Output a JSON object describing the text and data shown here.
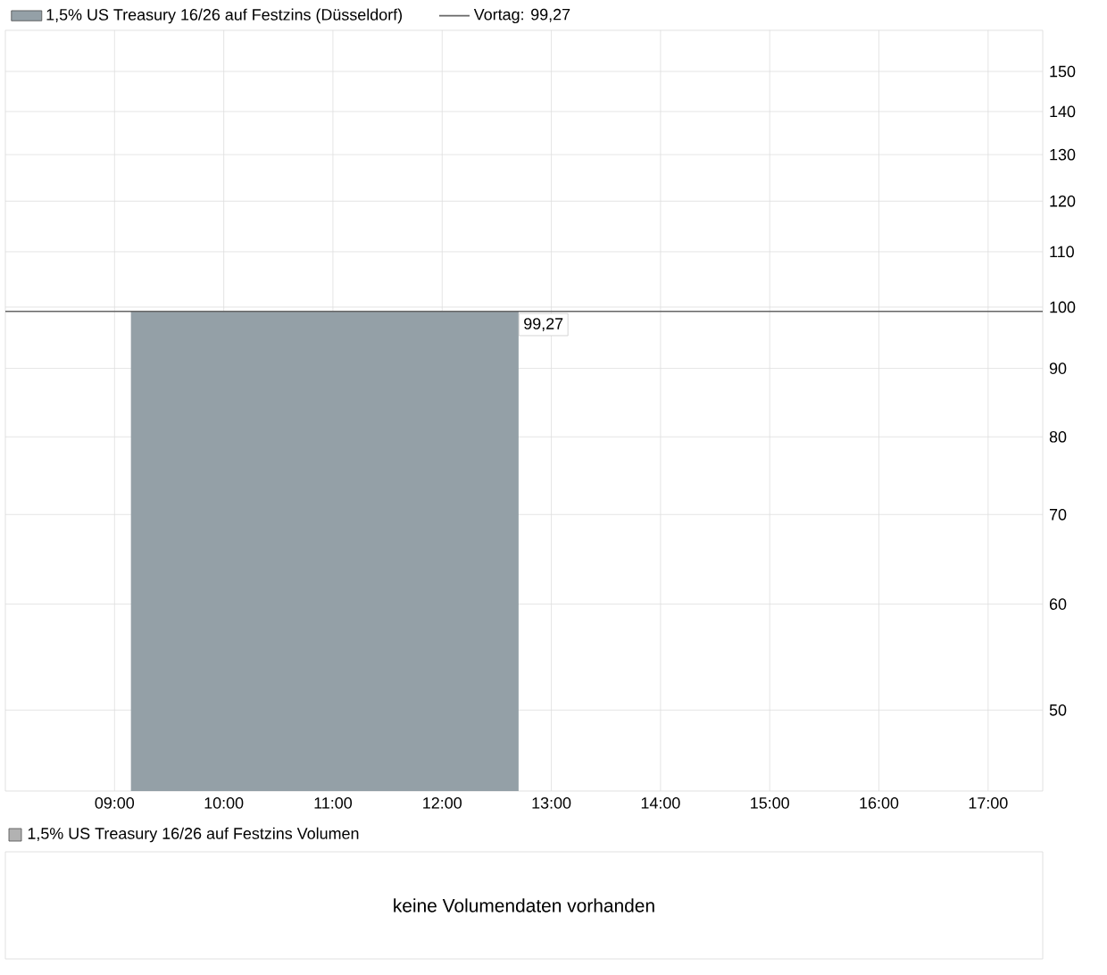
{
  "chart_data": [
    {
      "type": "area",
      "x": [
        9.15,
        12.7
      ],
      "legend": "top left",
      "grid": true,
      "log": "y",
      "series": [
        {
          "name": "1,5% US Treasury 16/26 auf Festzins (Düsseldorf)",
          "color": "#94a0a7",
          "values": [
            99.27,
            99.27
          ],
          "value_labels": [
            null,
            "99,27"
          ]
        }
      ],
      "ref_lines": [
        {
          "axis": "y",
          "value": 99.27,
          "label": "Vortag: 99,27",
          "color": "#666666"
        }
      ],
      "xlim": [
        8.0,
        17.5
      ],
      "ylim": [
        43.5,
        161
      ],
      "xticks": [
        {
          "value": 9,
          "label": "09:00"
        },
        {
          "value": 10,
          "label": "10:00"
        },
        {
          "value": 11,
          "label": "11:00"
        },
        {
          "value": 12,
          "label": "12:00"
        },
        {
          "value": 13,
          "label": "13:00"
        },
        {
          "value": 14,
          "label": "14:00"
        },
        {
          "value": 15,
          "label": "15:00"
        },
        {
          "value": 16,
          "label": "16:00"
        },
        {
          "value": 17,
          "label": "17:00"
        }
      ],
      "yticks": [
        50,
        60,
        70,
        80,
        90,
        100,
        110,
        120,
        130,
        140,
        150
      ]
    },
    {
      "type": "other",
      "title": "1,5% US Treasury 16/26 auf Festzins Volumen",
      "annotations": [
        "keine Volumendaten vorhanden"
      ]
    }
  ]
}
